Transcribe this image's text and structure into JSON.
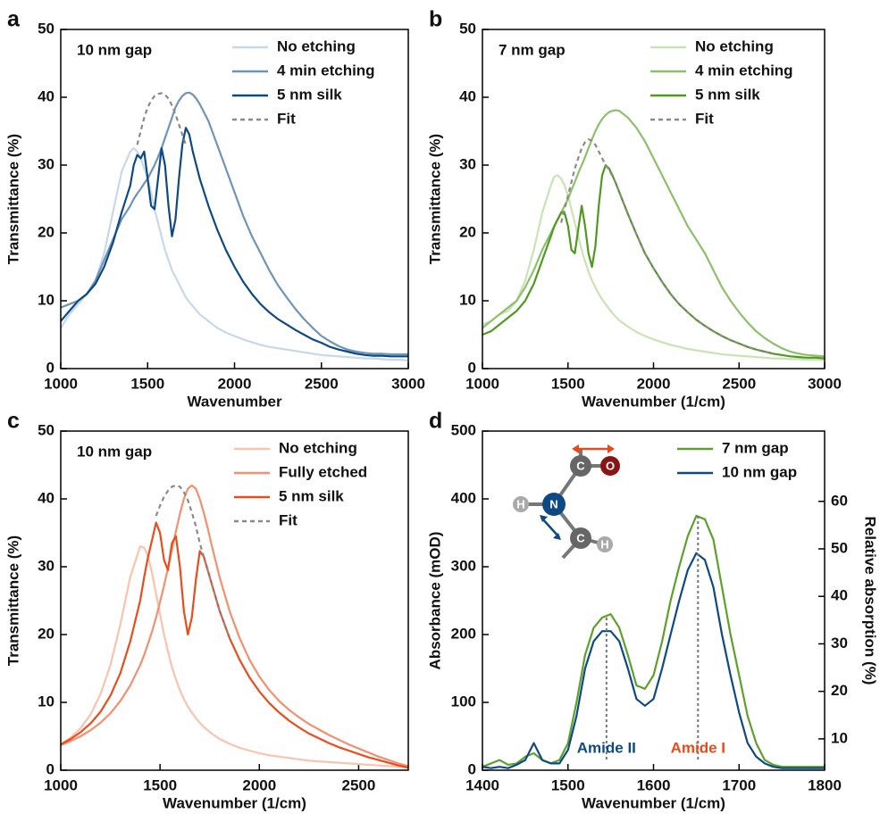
{
  "chart_data": [
    {
      "panel": "a",
      "type": "line",
      "label": "10 nm gap",
      "xlabel": "Wavenumber",
      "ylabel": "Transmittance (%)",
      "x": [
        1000,
        1050,
        1100,
        1150,
        1200,
        1250,
        1300,
        1350,
        1400,
        1420,
        1440,
        1460,
        1480,
        1500,
        1520,
        1540,
        1560,
        1580,
        1600,
        1620,
        1640,
        1660,
        1680,
        1700,
        1720,
        1740,
        1760,
        1780,
        1800,
        1850,
        1900,
        1950,
        2000,
        2050,
        2100,
        2150,
        2200,
        2250,
        2300,
        2350,
        2400,
        2450,
        2500,
        2550,
        2600,
        2650,
        2700,
        2750,
        2800,
        2850,
        2900,
        2950,
        3000
      ],
      "series": [
        {
          "name": "No etching",
          "color": "#c6d9ea",
          "values": [
            6,
            8,
            9.5,
            11,
            13,
            17,
            23,
            29,
            32,
            32.5,
            32,
            31,
            29.5,
            28,
            26,
            23.5,
            21.5,
            19.5,
            17.5,
            16,
            14.5,
            13.5,
            12.5,
            11.5,
            10.5,
            9.8,
            9.2,
            8.6,
            8,
            7,
            6,
            5.3,
            4.8,
            4.3,
            3.9,
            3.5,
            3.2,
            3,
            2.8,
            2.6,
            2.4,
            2.2,
            2,
            1.9,
            1.8,
            1.7,
            1.6,
            1.5,
            1.5,
            1.4,
            1.3,
            1.3,
            1.2
          ]
        },
        {
          "name": "4 min etching",
          "color": "#6f94b8",
          "values": [
            9,
            9.5,
            10,
            11,
            13,
            16,
            19,
            22,
            24,
            25,
            25.8,
            26.5,
            27.3,
            28,
            29,
            30,
            31.2,
            32.5,
            34,
            35.5,
            37,
            38.5,
            39.5,
            40.2,
            40.6,
            40.7,
            40.4,
            39.8,
            39,
            36.5,
            33,
            29.5,
            26,
            22.5,
            19.5,
            17,
            14.5,
            12.3,
            10.5,
            8.8,
            7.3,
            6,
            4.8,
            4,
            3.3,
            2.8,
            2.5,
            2.3,
            2.2,
            2.2,
            2.1,
            2.1,
            2.1
          ]
        },
        {
          "name": "5 nm silk",
          "color": "#0d4a85",
          "values": [
            7,
            8.5,
            10,
            11,
            12.5,
            15,
            18.5,
            23,
            27,
            30,
            31.5,
            31,
            32,
            28,
            24,
            23.5,
            28,
            32.5,
            30,
            24,
            19.5,
            22,
            28,
            33,
            35.5,
            34.5,
            32,
            30,
            28,
            24,
            20.5,
            17.5,
            15,
            12.8,
            11,
            9.5,
            8.3,
            7.3,
            6.5,
            5.7,
            5,
            4.3,
            3.8,
            3.2,
            2.8,
            2.5,
            2.2,
            2,
            1.9,
            1.9,
            1.8,
            1.8,
            1.8
          ]
        },
        {
          "name": "Fit",
          "color": "#8a8a8a",
          "style": "dashed",
          "values": [
            null,
            null,
            null,
            null,
            null,
            null,
            null,
            null,
            null,
            null,
            33,
            35,
            37,
            38.5,
            39.5,
            40.2,
            40.5,
            40.6,
            40.4,
            39.8,
            38.8,
            37.5,
            36,
            34.5,
            33,
            null,
            null,
            null,
            null,
            null,
            null,
            null,
            null,
            null,
            null,
            null,
            null,
            null,
            null,
            null,
            null,
            null,
            null,
            null,
            null,
            null,
            null,
            null,
            null,
            null,
            null,
            null,
            null
          ]
        }
      ],
      "xlim": [
        1000,
        3000
      ],
      "ylim": [
        0,
        50
      ],
      "xticks": [
        1000,
        1500,
        2000,
        2500,
        3000
      ],
      "yticks": [
        0,
        10,
        20,
        30,
        40,
        50
      ]
    },
    {
      "panel": "b",
      "type": "line",
      "label": "7 nm gap",
      "xlabel": "Wavenumber (1/cm)",
      "ylabel": "Transmittance (%)",
      "x": [
        1000,
        1050,
        1100,
        1150,
        1200,
        1250,
        1300,
        1350,
        1400,
        1420,
        1440,
        1460,
        1480,
        1500,
        1520,
        1540,
        1560,
        1580,
        1600,
        1620,
        1640,
        1660,
        1680,
        1700,
        1720,
        1740,
        1760,
        1780,
        1800,
        1850,
        1900,
        1950,
        2000,
        2050,
        2100,
        2150,
        2200,
        2250,
        2300,
        2350,
        2400,
        2450,
        2500,
        2550,
        2600,
        2650,
        2700,
        2750,
        2800,
        2850,
        2900,
        2950,
        3000
      ],
      "series": [
        {
          "name": "No etching",
          "color": "#c9e4b4",
          "values": [
            6.5,
            7,
            8,
            8.5,
            10,
            13,
            17.5,
            23,
            27,
            28.3,
            28.5,
            28,
            27,
            25.5,
            23.5,
            21.5,
            19.5,
            17.5,
            15.8,
            14.3,
            13,
            12,
            11,
            10.2,
            9.5,
            8.8,
            8.2,
            7.6,
            7.1,
            6.2,
            5.4,
            4.8,
            4.3,
            3.9,
            3.5,
            3.2,
            2.9,
            2.7,
            2.5,
            2.3,
            2.1,
            2,
            1.9,
            1.8,
            1.7,
            1.6,
            1.5,
            1.5,
            1.4,
            1.4,
            1.3,
            1.3,
            1.3
          ]
        },
        {
          "name": "4 min etching",
          "color": "#8cc06a",
          "values": [
            6,
            7,
            8,
            9,
            10,
            12,
            14.5,
            17.5,
            20,
            21,
            22,
            23,
            24,
            25,
            26.3,
            27.5,
            28.8,
            30,
            31.2,
            32.5,
            33.8,
            35,
            36,
            36.8,
            37.4,
            37.8,
            38,
            38.1,
            38,
            37,
            35.5,
            33.5,
            31,
            28.5,
            26,
            23.5,
            21,
            19,
            17,
            14.5,
            12,
            10,
            8.3,
            6.8,
            5.5,
            4.5,
            3.7,
            3,
            2.5,
            2.2,
            2,
            1.9,
            1.8
          ]
        },
        {
          "name": "5 nm silk",
          "color": "#4f9a1e",
          "values": [
            5,
            5.5,
            6.5,
            7.5,
            8.5,
            10,
            12.5,
            16,
            19.5,
            21,
            22,
            23,
            23,
            21,
            17.5,
            17,
            20.5,
            24,
            21,
            17,
            15,
            18,
            24,
            28.5,
            30,
            29.5,
            28.5,
            27.3,
            26,
            22.8,
            19.8,
            17,
            14.8,
            12.8,
            11,
            9.5,
            8.3,
            7.2,
            6.3,
            5.5,
            4.8,
            4.2,
            3.7,
            3.2,
            2.8,
            2.5,
            2.2,
            2,
            1.8,
            1.7,
            1.6,
            1.6,
            1.5
          ]
        },
        {
          "name": "Fit",
          "color": "#8a8a8a",
          "style": "dashed",
          "values": [
            null,
            null,
            null,
            null,
            null,
            null,
            null,
            null,
            null,
            null,
            null,
            21.5,
            23.5,
            25.5,
            27.5,
            29.5,
            31,
            32.5,
            33.4,
            33.8,
            33.6,
            33,
            32,
            31,
            30,
            29.3,
            28.4,
            27.3,
            26,
            22.8,
            19.8,
            17,
            14.8,
            12.8,
            11,
            9.5,
            8.3,
            7.2,
            6.3,
            5.5,
            4.8,
            4.2,
            3.7,
            3.2,
            2.8,
            2.5,
            2.2,
            null,
            null,
            null,
            null,
            null,
            null
          ]
        }
      ],
      "xlim": [
        1000,
        3000
      ],
      "ylim": [
        0,
        50
      ],
      "xticks": [
        1000,
        1500,
        2000,
        2500,
        3000
      ],
      "yticks": [
        0,
        10,
        20,
        30,
        40,
        50
      ]
    },
    {
      "panel": "c",
      "type": "line",
      "label": "10 nm gap",
      "xlabel": "Wavenumber (1/cm)",
      "ylabel": "Transmittance (%)",
      "x": [
        1000,
        1050,
        1100,
        1150,
        1200,
        1250,
        1300,
        1350,
        1400,
        1420,
        1440,
        1460,
        1480,
        1500,
        1520,
        1540,
        1560,
        1580,
        1600,
        1620,
        1640,
        1660,
        1680,
        1700,
        1720,
        1740,
        1760,
        1780,
        1800,
        1850,
        1900,
        1950,
        2000,
        2050,
        2100,
        2150,
        2200,
        2250,
        2300,
        2350,
        2400,
        2450,
        2500,
        2550,
        2600,
        2650,
        2700,
        2750
      ],
      "series": [
        {
          "name": "No etching",
          "color": "#f8c4b0",
          "values": [
            3.8,
            4.8,
            6.2,
            8.2,
            11.2,
            15.5,
            21.5,
            28.5,
            33,
            32.8,
            31.5,
            29,
            26,
            23,
            20,
            17.5,
            15.2,
            13.4,
            11.8,
            10.5,
            9.4,
            8.5,
            7.7,
            7,
            6.4,
            5.9,
            5.4,
            5,
            4.6,
            3.9,
            3.3,
            2.9,
            2.5,
            2.2,
            2,
            1.8,
            1.6,
            1.4,
            1.3,
            1.2,
            1.1,
            1,
            0.9,
            0.8,
            0.7,
            0.6,
            0.5,
            0.4
          ]
        },
        {
          "name": "Fully etched",
          "color": "#f29070",
          "values": [
            3.7,
            4.3,
            5,
            5.9,
            7,
            8.4,
            10.2,
            12.5,
            15.5,
            17,
            18.7,
            20.5,
            22.5,
            24.8,
            27.2,
            29.8,
            32.5,
            35.2,
            37.8,
            40,
            41.5,
            42,
            41.5,
            40,
            38,
            35.7,
            33.2,
            30.8,
            28.5,
            23.5,
            19.5,
            16.3,
            13.8,
            11.8,
            10.2,
            8.9,
            7.8,
            6.8,
            6,
            5.2,
            4.5,
            3.8,
            3.2,
            2.6,
            2,
            1.5,
            1,
            0.6
          ]
        },
        {
          "name": "5 nm silk",
          "color": "#ea4c1c",
          "values": [
            3.8,
            4.6,
            5.6,
            6.9,
            8.6,
            11,
            14.3,
            19,
            25,
            28.5,
            31.5,
            34,
            36.5,
            35,
            31,
            29.5,
            33.5,
            34.5,
            30,
            23.5,
            20,
            22.5,
            28,
            32.3,
            31.5,
            29.5,
            27.5,
            25.5,
            23.5,
            19.5,
            16.3,
            13.7,
            11.6,
            9.9,
            8.5,
            7.3,
            6.3,
            5.4,
            4.7,
            4,
            3.4,
            2.9,
            2.4,
            1.9,
            1.5,
            1.1,
            0.7,
            0.4
          ]
        },
        {
          "name": "Fit",
          "color": "#8a8a8a",
          "style": "dashed",
          "values": [
            null,
            null,
            null,
            null,
            null,
            null,
            null,
            null,
            null,
            null,
            null,
            null,
            37.5,
            39,
            40.3,
            41.2,
            41.8,
            42,
            41.8,
            41,
            39.8,
            38,
            36,
            33.5,
            31.5,
            29.5,
            27.5,
            25.5,
            23.5,
            19.5,
            null,
            null,
            null,
            null,
            null,
            null,
            null,
            null,
            null,
            null,
            null,
            null,
            null,
            null,
            null,
            null,
            null,
            null
          ]
        }
      ],
      "xlim": [
        1000,
        2750
      ],
      "ylim": [
        0,
        50
      ],
      "xticks": [
        1000,
        1500,
        2000,
        2500
      ],
      "yticks": [
        0,
        10,
        20,
        30,
        40,
        50
      ]
    },
    {
      "panel": "d",
      "type": "line",
      "xlabel": "Wavenumber (1/cm)",
      "ylabel": "Absorbance (mOD)",
      "y2label": "Relative absorption (%)",
      "x": [
        1400,
        1410,
        1420,
        1430,
        1440,
        1450,
        1460,
        1470,
        1480,
        1490,
        1500,
        1510,
        1520,
        1530,
        1540,
        1550,
        1560,
        1570,
        1580,
        1590,
        1600,
        1610,
        1620,
        1630,
        1640,
        1650,
        1660,
        1670,
        1680,
        1690,
        1700,
        1710,
        1720,
        1730,
        1740,
        1750,
        1760,
        1770,
        1780,
        1790,
        1800
      ],
      "series": [
        {
          "name": "7 nm gap",
          "color": "#5ea12a",
          "values": [
            5,
            10,
            15,
            8,
            10,
            20,
            25,
            15,
            10,
            15,
            40,
            100,
            170,
            210,
            225,
            230,
            210,
            170,
            125,
            120,
            140,
            190,
            250,
            300,
            345,
            375,
            370,
            340,
            270,
            200,
            140,
            80,
            40,
            15,
            8,
            5,
            5,
            5,
            5,
            5,
            5
          ]
        },
        {
          "name": "10 nm gap",
          "color": "#0d4a85",
          "values": [
            5,
            3,
            5,
            3,
            8,
            15,
            40,
            15,
            10,
            10,
            30,
            80,
            150,
            190,
            205,
            205,
            190,
            150,
            105,
            95,
            105,
            150,
            200,
            250,
            295,
            320,
            310,
            270,
            200,
            140,
            85,
            40,
            20,
            10,
            5,
            3,
            3,
            3,
            3,
            3,
            3
          ]
        }
      ],
      "annotations": [
        {
          "text": "Amide II",
          "x": 1545,
          "color": "#0d4a85"
        },
        {
          "text": "Amide I",
          "x": 1652,
          "color": "#e84a1a"
        }
      ],
      "molecule_labels": [
        "C",
        "O",
        "H",
        "N",
        "C",
        "H"
      ],
      "xlim": [
        1400,
        1800
      ],
      "ylim": [
        0,
        500
      ],
      "y2lim": [
        3.4,
        74.8
      ],
      "xticks": [
        1400,
        1500,
        1600,
        1700,
        1800
      ],
      "yticks": [
        0,
        100,
        200,
        300,
        400,
        500
      ],
      "y2ticks": [
        10,
        20,
        30,
        40,
        50,
        60
      ]
    }
  ]
}
